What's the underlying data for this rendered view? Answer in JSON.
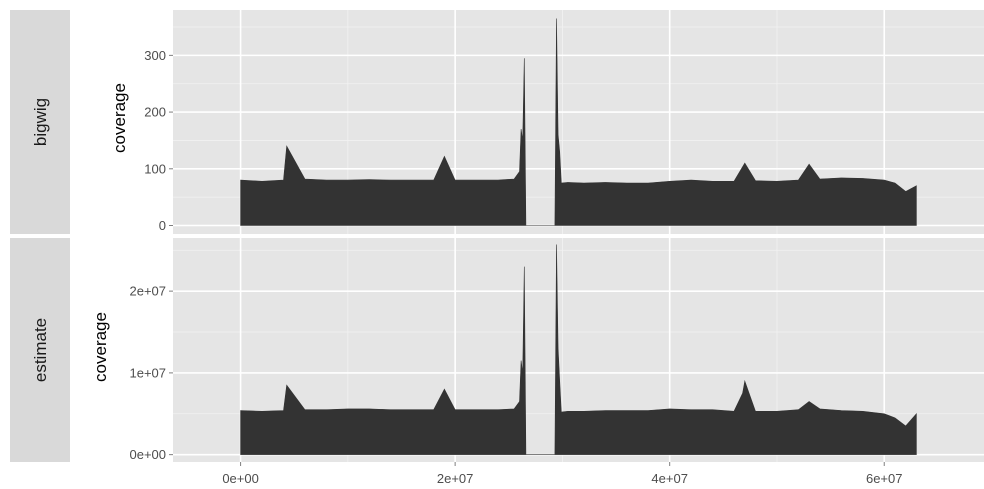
{
  "chart_data": {
    "type": "area",
    "x_tick_labels": [
      "0e+00",
      "2e+07",
      "4e+07",
      "6e+07"
    ],
    "x_ticks": [
      0,
      20000000,
      40000000,
      60000000
    ],
    "xlim": [
      -6300000,
      69300000
    ],
    "panels": [
      {
        "strip": "bigwig",
        "ylabel": "coverage",
        "ylim": [
          -15,
          380
        ],
        "y_ticks": [
          0,
          100,
          200,
          300
        ],
        "y_tick_labels": [
          "0",
          "100",
          "200",
          "300"
        ],
        "x": [
          0,
          2000000,
          4000000,
          4300000,
          6000000,
          8000000,
          10000000,
          12000000,
          14000000,
          16000000,
          18000000,
          19000000,
          20000000,
          22000000,
          24000000,
          25500000,
          26000000,
          26150000,
          26300000,
          26450000,
          26600000,
          29300000,
          29450000,
          29600000,
          29750000,
          29900000,
          30500000,
          32000000,
          34000000,
          36000000,
          38000000,
          40000000,
          42000000,
          44000000,
          46000000,
          47000000,
          48000000,
          50000000,
          52000000,
          53000000,
          54000000,
          56000000,
          58000000,
          60000000,
          61000000,
          62000000,
          63000000
        ],
        "values": [
          80,
          78,
          80,
          140,
          82,
          80,
          80,
          81,
          80,
          80,
          80,
          122,
          80,
          80,
          80,
          82,
          95,
          170,
          150,
          295,
          0,
          0,
          365,
          160,
          130,
          75,
          76,
          75,
          76,
          75,
          75,
          78,
          80,
          78,
          78,
          110,
          79,
          78,
          80,
          108,
          82,
          84,
          83,
          80,
          75,
          60,
          70
        ],
        "color": "#333333"
      },
      {
        "strip": "estimate",
        "ylabel": "coverage",
        "ylim": [
          -900000,
          26500000
        ],
        "y_ticks": [
          0,
          10000000,
          20000000
        ],
        "y_tick_labels": [
          "0e+00",
          "1e+07",
          "2e+07"
        ],
        "x": [
          0,
          2000000,
          4000000,
          4300000,
          6000000,
          8000000,
          10000000,
          12000000,
          14000000,
          16000000,
          18000000,
          19000000,
          20000000,
          22000000,
          24000000,
          25500000,
          26000000,
          26150000,
          26300000,
          26450000,
          26600000,
          29300000,
          29450000,
          29600000,
          29750000,
          29900000,
          30500000,
          32000000,
          34000000,
          36000000,
          38000000,
          40000000,
          42000000,
          44000000,
          46000000,
          46800000,
          47000000,
          48000000,
          50000000,
          52000000,
          53000000,
          54000000,
          56000000,
          58000000,
          60000000,
          61000000,
          62000000,
          63000000
        ],
        "values": [
          5400000,
          5300000,
          5400000,
          8500000,
          5500000,
          5500000,
          5600000,
          5600000,
          5500000,
          5500000,
          5500000,
          8000000,
          5500000,
          5500000,
          5500000,
          5600000,
          6500000,
          11500000,
          10000000,
          23000000,
          0,
          0,
          25700000,
          13000000,
          9000000,
          5200000,
          5300000,
          5300000,
          5400000,
          5400000,
          5400000,
          5600000,
          5500000,
          5500000,
          5300000,
          7500000,
          9000000,
          5300000,
          5300000,
          5500000,
          6500000,
          5600000,
          5400000,
          5300000,
          5000000,
          4500000,
          3500000,
          5000000
        ],
        "color": "#333333"
      }
    ]
  }
}
